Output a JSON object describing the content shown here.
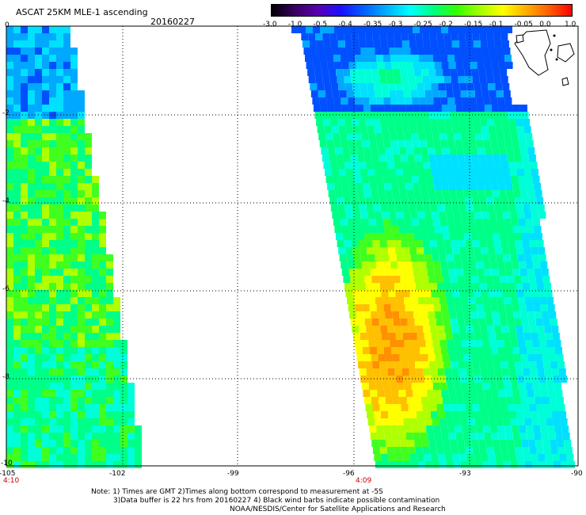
{
  "header": {
    "title": "ASCAT 25KM MLE-1 ascending",
    "date": "20160227"
  },
  "colorbar": {
    "labels": [
      "-3.0",
      "-1.0",
      "-0.5",
      "-0.4",
      "-0.35",
      "-0.3",
      "-0.25",
      "-0.2",
      "-0.15",
      "-0.1",
      "-0.05",
      "0.0",
      "1.0"
    ],
    "colors": [
      "#000000",
      "#3a0060",
      "#5a00b0",
      "#1a10ff",
      "#0060ff",
      "#00b0ff",
      "#00ffff",
      "#00ff80",
      "#30ff00",
      "#a0ff00",
      "#ffff00",
      "#ffb000",
      "#ff6000",
      "#ff0000"
    ]
  },
  "map": {
    "lat_labels": [
      "0",
      "-2",
      "-4",
      "-6",
      "-8",
      "-10"
    ],
    "lon_labels": [
      "-105",
      "-102",
      "-99",
      "-96",
      "-93",
      "-90"
    ],
    "time_labels": [
      "4:10",
      "4:09"
    ]
  },
  "notes": {
    "line1": "Note: 1) Times are GMT 2)Times along bottom correspond to measurement at -5S",
    "line2": "3)Data buffer is 22 hrs from 20160227 4) Black wind barbs indicate possible contamination",
    "line3": "NOAA/NESDIS/Center for Satellite Applications and Research"
  }
}
